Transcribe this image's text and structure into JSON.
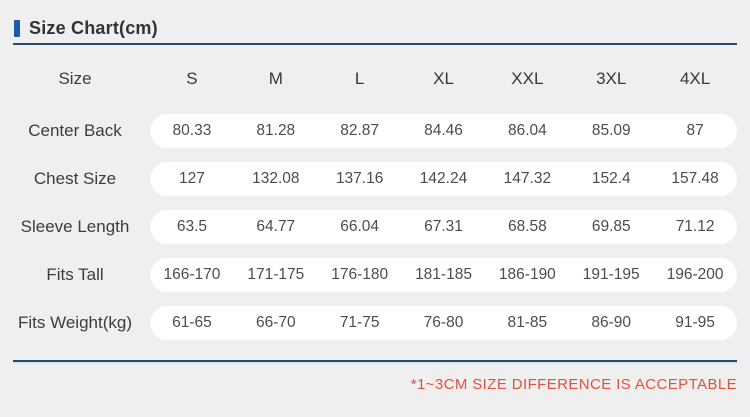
{
  "header": {
    "title": "Size Chart(cm)"
  },
  "footer": {
    "note": "*1~3CM SIZE DIFFERENCE IS ACCEPTABLE"
  },
  "colors": {
    "accent_blue": "#1f5aa8",
    "divider_navy": "#2b4a6b",
    "note_red": "#e2523c",
    "background": "#efeff0",
    "pill_white": "#ffffff"
  },
  "chart_data": {
    "type": "table",
    "title": "Size Chart(cm)",
    "columns": [
      "Size",
      "S",
      "M",
      "L",
      "XL",
      "XXL",
      "3XL",
      "4XL"
    ],
    "rows": [
      {
        "label": "Center Back",
        "values": [
          "80.33",
          "81.28",
          "82.87",
          "84.46",
          "86.04",
          "85.09",
          "87"
        ]
      },
      {
        "label": "Chest Size",
        "values": [
          "127",
          "132.08",
          "137.16",
          "142.24",
          "147.32",
          "152.4",
          "157.48"
        ]
      },
      {
        "label": "Sleeve Length",
        "values": [
          "63.5",
          "64.77",
          "66.04",
          "67.31",
          "68.58",
          "69.85",
          "71.12"
        ]
      },
      {
        "label": "Fits Tall",
        "values": [
          "166-170",
          "171-175",
          "176-180",
          "181-185",
          "186-190",
          "191-195",
          "196-200"
        ]
      },
      {
        "label": "Fits Weight(kg)",
        "values": [
          "61-65",
          "66-70",
          "71-75",
          "76-80",
          "81-85",
          "86-90",
          "91-95"
        ]
      }
    ]
  }
}
